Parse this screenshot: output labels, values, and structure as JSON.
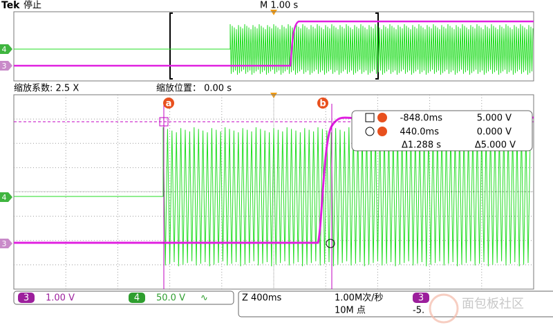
{
  "header": {
    "brand": "Tek",
    "status": "停止",
    "timebase": "M 1.00 s"
  },
  "overview": {
    "ch4": "4",
    "ch3": "3"
  },
  "zoom": {
    "factor": "缩放系数: 2.5 X",
    "position": "缩放位置： 0.00 s"
  },
  "main": {
    "ch4": "4",
    "ch3": "3",
    "cursor_a": "a",
    "cursor_b": "b"
  },
  "readout": {
    "a_time": "-848.0ms",
    "a_value": "5.000 V",
    "b_time": "440.0ms",
    "b_value": "0.000 V",
    "delta_time": "Δ1.288 s",
    "delta_value": "Δ5.000 V"
  },
  "footer": {
    "ch3": "3",
    "ch3_scale": "1.00 V",
    "ch4": "4",
    "ch4_scale": "50.0 V",
    "coupling": "∿",
    "zoom": "Z 400ms",
    "rate": "1.00M次/秒",
    "points": "10M 点",
    "trigger_ch": "3",
    "trigger_level": "-5."
  },
  "watermark": "面包板社区"
}
